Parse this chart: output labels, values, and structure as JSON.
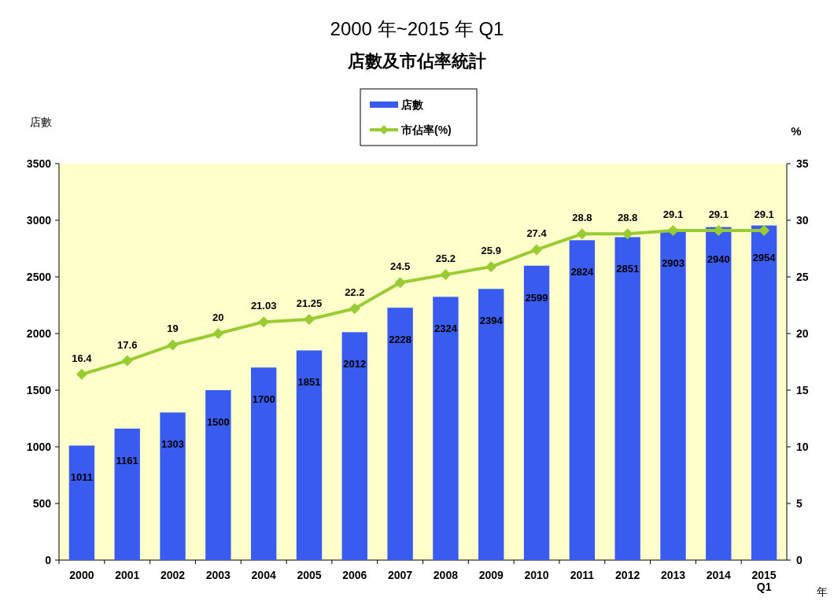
{
  "chart_data": {
    "type": "bar",
    "title": "2000 年~2015 年 Q1",
    "subtitle": "店數及市佔率統計",
    "xlabel": "年",
    "ylabel": "店數",
    "y2label": "%",
    "categories": [
      "2000",
      "2001",
      "2002",
      "2003",
      "2004",
      "2005",
      "2006",
      "2007",
      "2008",
      "2009",
      "2010",
      "2011",
      "2012",
      "2013",
      "2014",
      "2015\nQ1"
    ],
    "series": [
      {
        "name": "店數",
        "color": "#3a5bef",
        "values": [
          1011,
          1161,
          1303,
          1500,
          1700,
          1851,
          2012,
          2228,
          2324,
          2394,
          2599,
          2824,
          2851,
          2903,
          2940,
          2954
        ]
      },
      {
        "name": "市佔率(%)",
        "type": "line",
        "axis": "y2",
        "color": "#99cc33",
        "marker": "diamond",
        "values": [
          16.4,
          17.6,
          19,
          20,
          21.03,
          21.25,
          22.2,
          24.5,
          25.2,
          25.9,
          27.4,
          28.8,
          28.8,
          29.1,
          29.1,
          29.1
        ]
      }
    ],
    "ylim": [
      0,
      3500
    ],
    "yticks": [
      0,
      500,
      1000,
      1500,
      2000,
      2500,
      3000,
      3500
    ],
    "y2lim": [
      0,
      35
    ],
    "y2ticks": [
      0,
      5,
      10,
      15,
      20,
      25,
      30,
      35
    ],
    "data_labels": true,
    "legend": "top"
  }
}
